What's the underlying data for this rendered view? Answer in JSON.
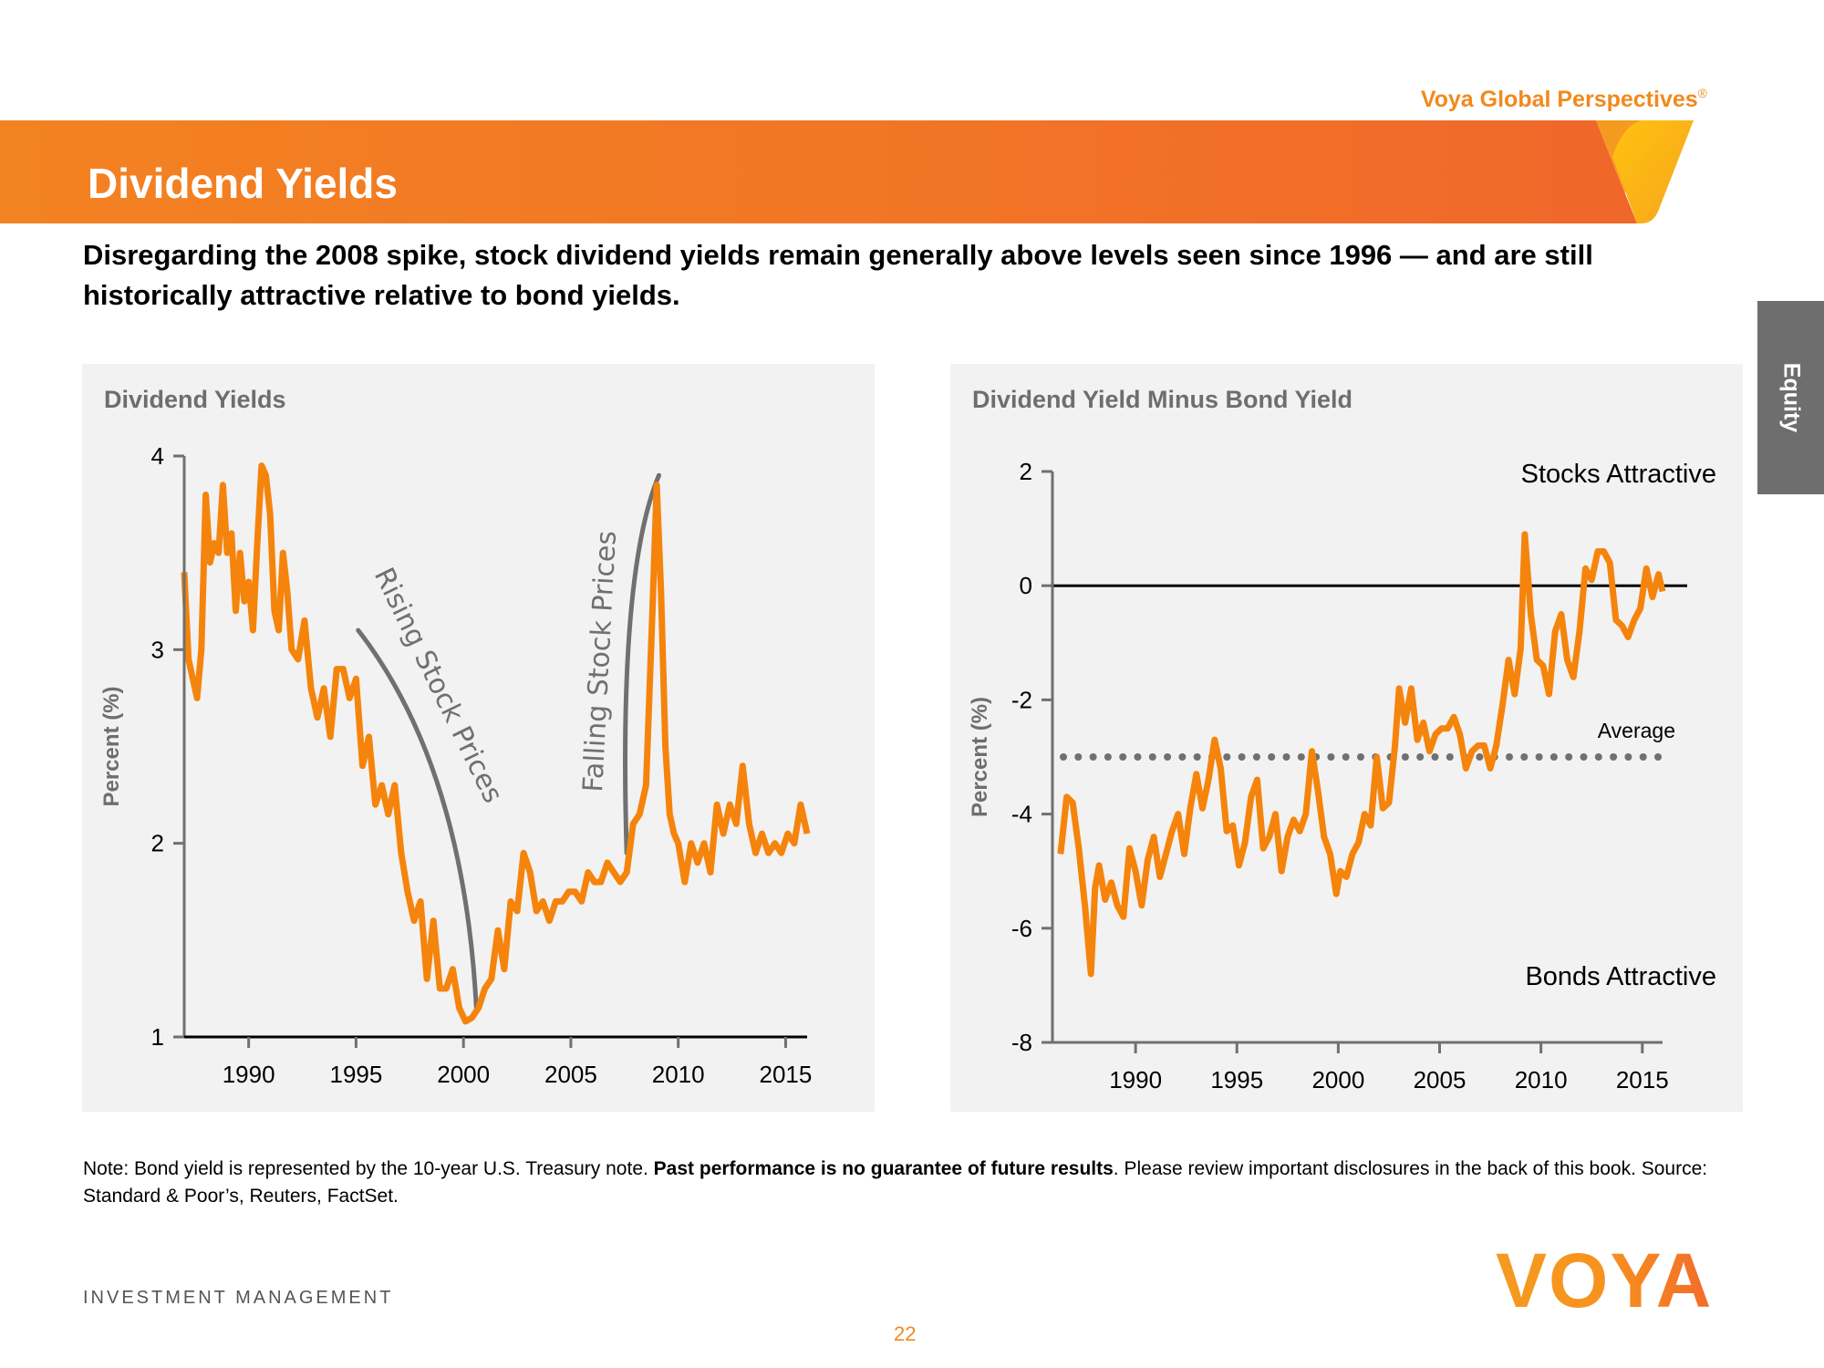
{
  "header": {
    "brand": "Voya Global Perspectives",
    "brand_mark": "®",
    "title": "Dividend Yields",
    "subtitle": "Disregarding the 2008 spike, stock dividend yields remain generally above levels seen since 1996 — and are still historically attractive relative to bond yields.",
    "side_tab": "Equity",
    "accent_color": "#f08a1c",
    "banner_color": "#f27526"
  },
  "chart_data": [
    {
      "type": "line",
      "title": "Dividend Yields",
      "xlabel": "",
      "ylabel": "Percent (%)",
      "xlim": [
        1987.0,
        2016.0
      ],
      "ylim": [
        1,
        4
      ],
      "yticks": [
        1,
        2,
        3,
        4
      ],
      "xticks": [
        1990,
        1995,
        2000,
        2005,
        2010,
        2015
      ],
      "grid": false,
      "legend": "none",
      "line_color": "#f5840c",
      "annotations": [
        {
          "text": "Rising Stock Prices",
          "style": "handwritten",
          "arrow_from": [
            1995.1,
            3.1
          ],
          "arrow_to": [
            2000.6,
            1.15
          ]
        },
        {
          "text": "Falling Stock Prices",
          "style": "handwritten",
          "arrow_from": [
            2007.6,
            1.95
          ],
          "arrow_to": [
            2009.1,
            3.9
          ]
        }
      ],
      "series": [
        {
          "name": "Dividend Yield",
          "x": [
            1987.0,
            1987.2,
            1987.4,
            1987.6,
            1987.8,
            1988.0,
            1988.2,
            1988.4,
            1988.6,
            1988.8,
            1989.0,
            1989.2,
            1989.4,
            1989.6,
            1989.8,
            1990.0,
            1990.2,
            1990.4,
            1990.6,
            1990.8,
            1991.0,
            1991.2,
            1991.4,
            1991.6,
            1991.8,
            1992.0,
            1992.3,
            1992.6,
            1992.9,
            1993.2,
            1993.5,
            1993.8,
            1994.1,
            1994.4,
            1994.7,
            1995.0,
            1995.3,
            1995.6,
            1995.9,
            1996.2,
            1996.5,
            1996.8,
            1997.1,
            1997.4,
            1997.7,
            1998.0,
            1998.3,
            1998.6,
            1998.9,
            1999.2,
            1999.5,
            1999.8,
            2000.1,
            2000.4,
            2000.7,
            2001.0,
            2001.3,
            2001.6,
            2001.9,
            2002.2,
            2002.5,
            2002.8,
            2003.1,
            2003.4,
            2003.7,
            2004.0,
            2004.3,
            2004.6,
            2004.9,
            2005.2,
            2005.5,
            2005.8,
            2006.1,
            2006.4,
            2006.7,
            2007.0,
            2007.3,
            2007.6,
            2007.9,
            2008.2,
            2008.5,
            2008.8,
            2009.0,
            2009.2,
            2009.4,
            2009.6,
            2009.8,
            2010.0,
            2010.3,
            2010.6,
            2010.9,
            2011.2,
            2011.5,
            2011.8,
            2012.1,
            2012.4,
            2012.7,
            2013.0,
            2013.3,
            2013.6,
            2013.9,
            2014.2,
            2014.5,
            2014.8,
            2015.1,
            2015.4,
            2015.7,
            2016.0
          ],
          "y": [
            3.4,
            2.95,
            2.85,
            2.75,
            3.0,
            3.8,
            3.45,
            3.55,
            3.5,
            3.85,
            3.5,
            3.6,
            3.2,
            3.5,
            3.25,
            3.35,
            3.1,
            3.55,
            3.95,
            3.9,
            3.7,
            3.2,
            3.1,
            3.5,
            3.3,
            3.0,
            2.95,
            3.15,
            2.8,
            2.65,
            2.8,
            2.55,
            2.9,
            2.9,
            2.75,
            2.85,
            2.4,
            2.55,
            2.2,
            2.3,
            2.15,
            2.3,
            1.95,
            1.75,
            1.6,
            1.7,
            1.3,
            1.6,
            1.25,
            1.25,
            1.35,
            1.15,
            1.08,
            1.1,
            1.15,
            1.25,
            1.3,
            1.55,
            1.35,
            1.7,
            1.65,
            1.95,
            1.85,
            1.65,
            1.7,
            1.6,
            1.7,
            1.7,
            1.75,
            1.75,
            1.7,
            1.85,
            1.8,
            1.8,
            1.9,
            1.85,
            1.8,
            1.85,
            2.1,
            2.15,
            2.3,
            3.2,
            3.85,
            3.3,
            2.5,
            2.15,
            2.05,
            2.0,
            1.8,
            2.0,
            1.9,
            2.0,
            1.85,
            2.2,
            2.05,
            2.2,
            2.1,
            2.4,
            2.1,
            1.95,
            2.05,
            1.95,
            2.0,
            1.95,
            2.05,
            2.0,
            2.2,
            2.05
          ]
        }
      ]
    },
    {
      "type": "line",
      "title": "Dividend Yield Minus Bond Yield",
      "xlabel": "",
      "ylabel": "Percent (%)",
      "xlim": [
        1985.9,
        2016.0
      ],
      "ylim": [
        -8,
        2
      ],
      "yticks": [
        -8,
        -6,
        -4,
        -2,
        0,
        2
      ],
      "xticks": [
        1990,
        1995,
        2000,
        2005,
        2010,
        2015
      ],
      "grid": false,
      "legend": "none",
      "line_color": "#f5840c",
      "zero_line": 0,
      "average": -3.0,
      "average_label": "Average",
      "region_labels": {
        "top": "Stocks Attractive",
        "bottom": "Bonds Attractive"
      },
      "series": [
        {
          "name": "Dividend Yield Minus Bond Yield",
          "x": [
            1986.3,
            1986.6,
            1986.9,
            1987.2,
            1987.5,
            1987.8,
            1988.0,
            1988.2,
            1988.5,
            1988.8,
            1989.1,
            1989.4,
            1989.7,
            1990.0,
            1990.3,
            1990.6,
            1990.9,
            1991.2,
            1991.5,
            1991.8,
            1992.1,
            1992.4,
            1992.7,
            1993.0,
            1993.3,
            1993.6,
            1993.9,
            1994.2,
            1994.5,
            1994.8,
            1995.1,
            1995.4,
            1995.7,
            1996.0,
            1996.3,
            1996.6,
            1996.9,
            1997.2,
            1997.5,
            1997.8,
            1998.1,
            1998.4,
            1998.7,
            1999.0,
            1999.3,
            1999.6,
            1999.9,
            2000.1,
            2000.4,
            2000.7,
            2001.0,
            2001.3,
            2001.6,
            2001.9,
            2002.2,
            2002.5,
            2002.8,
            2003.0,
            2003.3,
            2003.6,
            2003.9,
            2004.2,
            2004.5,
            2004.8,
            2005.1,
            2005.4,
            2005.7,
            2006.0,
            2006.3,
            2006.6,
            2006.9,
            2007.2,
            2007.5,
            2007.8,
            2008.1,
            2008.4,
            2008.7,
            2009.0,
            2009.2,
            2009.5,
            2009.8,
            2010.1,
            2010.4,
            2010.7,
            2011.0,
            2011.3,
            2011.6,
            2011.9,
            2012.2,
            2012.5,
            2012.8,
            2013.1,
            2013.4,
            2013.7,
            2014.0,
            2014.3,
            2014.6,
            2014.9,
            2015.2,
            2015.5,
            2015.8,
            2016.0
          ],
          "y": [
            -4.7,
            -3.7,
            -3.8,
            -4.6,
            -5.6,
            -6.8,
            -5.3,
            -4.9,
            -5.5,
            -5.2,
            -5.6,
            -5.8,
            -4.6,
            -5.0,
            -5.6,
            -4.8,
            -4.4,
            -5.1,
            -4.7,
            -4.3,
            -4.0,
            -4.7,
            -3.9,
            -3.3,
            -3.9,
            -3.4,
            -2.7,
            -3.2,
            -4.3,
            -4.2,
            -4.9,
            -4.5,
            -3.7,
            -3.4,
            -4.6,
            -4.4,
            -4.0,
            -5.0,
            -4.4,
            -4.1,
            -4.3,
            -4.0,
            -2.9,
            -3.6,
            -4.4,
            -4.7,
            -5.4,
            -5.0,
            -5.1,
            -4.7,
            -4.5,
            -4.0,
            -4.2,
            -3.0,
            -3.9,
            -3.8,
            -2.8,
            -1.8,
            -2.4,
            -1.8,
            -2.7,
            -2.4,
            -2.9,
            -2.6,
            -2.5,
            -2.5,
            -2.3,
            -2.6,
            -3.2,
            -2.9,
            -2.8,
            -2.8,
            -3.2,
            -2.8,
            -2.1,
            -1.3,
            -1.9,
            -1.1,
            0.9,
            -0.5,
            -1.3,
            -1.4,
            -1.9,
            -0.8,
            -0.5,
            -1.3,
            -1.6,
            -0.8,
            0.3,
            0.1,
            0.6,
            0.6,
            0.4,
            -0.6,
            -0.7,
            -0.9,
            -0.6,
            -0.4,
            0.3,
            -0.2,
            0.2,
            -0.1
          ]
        }
      ]
    }
  ],
  "left_chart": {
    "title": "Dividend Yields",
    "ylabel": "Percent (%)",
    "annotation_rising": "Rising Stock Prices",
    "annotation_falling": "Falling Stock Prices"
  },
  "right_chart": {
    "title": "Dividend Yield Minus Bond Yield",
    "ylabel": "Percent (%)",
    "stocks_label": "Stocks Attractive",
    "bonds_label": "Bonds Attractive",
    "average_label": "Average"
  },
  "footer": {
    "note_prefix": "Note: Bond yield is represented by the 10-year U.S. Treasury note. ",
    "note_bold": "Past performance is no guarantee of future results",
    "note_suffix": ". Please review important disclosures in the back of this book. Source: Standard & Poor’s, Reuters, FactSet.",
    "division": "INVESTMENT MANAGEMENT",
    "page_number": "22",
    "logo_text": "VOYA"
  }
}
